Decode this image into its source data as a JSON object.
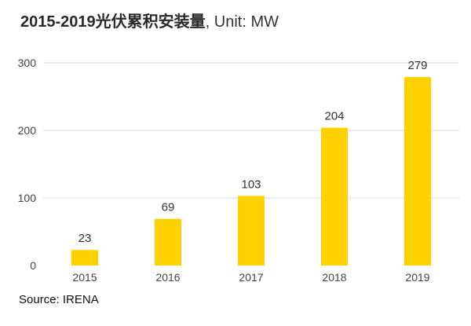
{
  "title": {
    "main": "2015-2019光伏累积安装量",
    "unit": ", Unit: MW"
  },
  "source": "Source: IRENA",
  "colors": {
    "bar": "#FFD100",
    "gridline": "#d9d9d9",
    "tick_text": "#444444",
    "label_text": "#333333"
  },
  "chart_data": {
    "type": "bar",
    "title": "2015-2019光伏累积安装量, Unit: MW",
    "xlabel": "",
    "ylabel": "",
    "categories": [
      "2015",
      "2016",
      "2017",
      "2018",
      "2019"
    ],
    "values": [
      23,
      69,
      103,
      204,
      279
    ],
    "data_labels": [
      "23",
      "69",
      "103",
      "204",
      "279"
    ],
    "ylim": [
      0,
      300
    ],
    "yticks": [
      0,
      100,
      200,
      300
    ],
    "grid": true,
    "legend": "none"
  }
}
